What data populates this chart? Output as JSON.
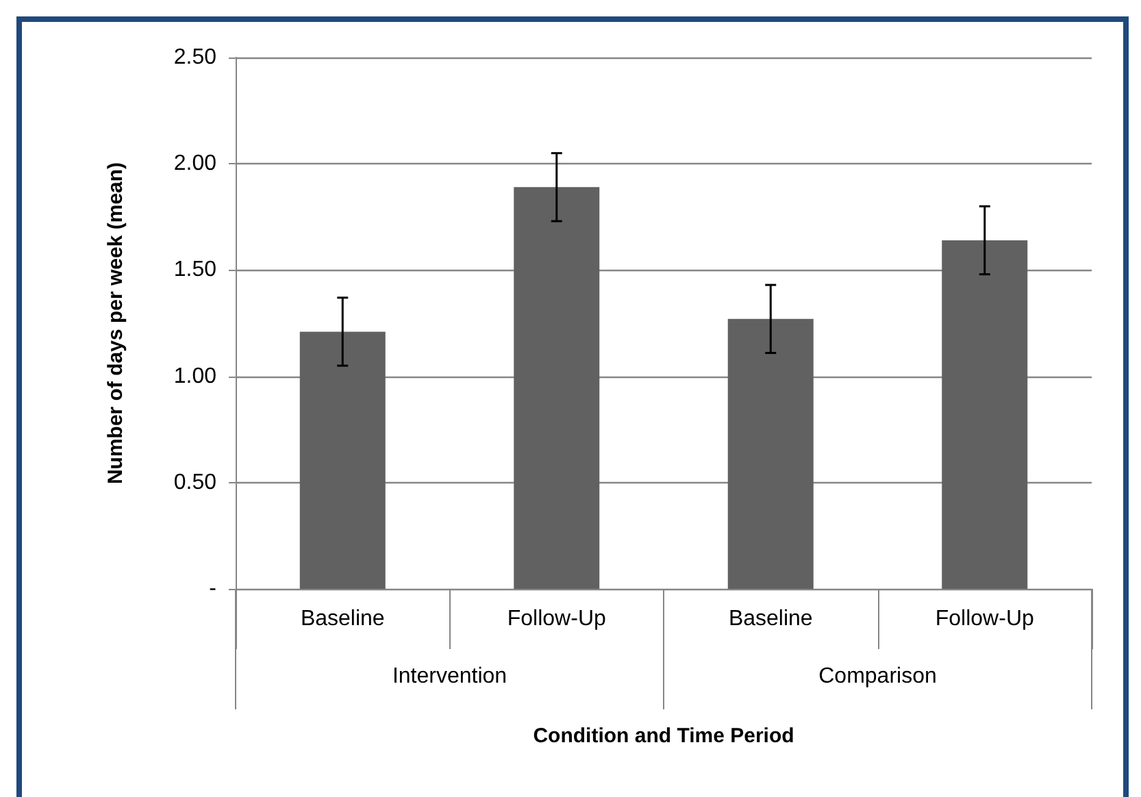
{
  "chart_data": {
    "type": "bar",
    "xlabel": "Condition and Time Period",
    "ylabel": "Number of days per week (mean)",
    "categories": [
      "Baseline",
      "Follow-Up",
      "Baseline",
      "Follow-Up"
    ],
    "values": [
      1.21,
      1.89,
      1.27,
      1.64
    ],
    "errors": [
      0.16,
      0.16,
      0.16,
      0.16
    ],
    "color": "#616161",
    "annotations": [
      "Intervention",
      "Comparison"
    ],
    "ylim": [
      0,
      2.5
    ],
    "yticks": [
      {
        "value": 0,
        "label": "-"
      },
      {
        "value": 0.5,
        "label": "0.50"
      },
      {
        "value": 1,
        "label": "1.00"
      },
      {
        "value": 1.5,
        "label": "1.50"
      },
      {
        "value": 2,
        "label": "2.00"
      },
      {
        "value": 2.5,
        "label": "2.50"
      }
    ],
    "grid": "y"
  }
}
